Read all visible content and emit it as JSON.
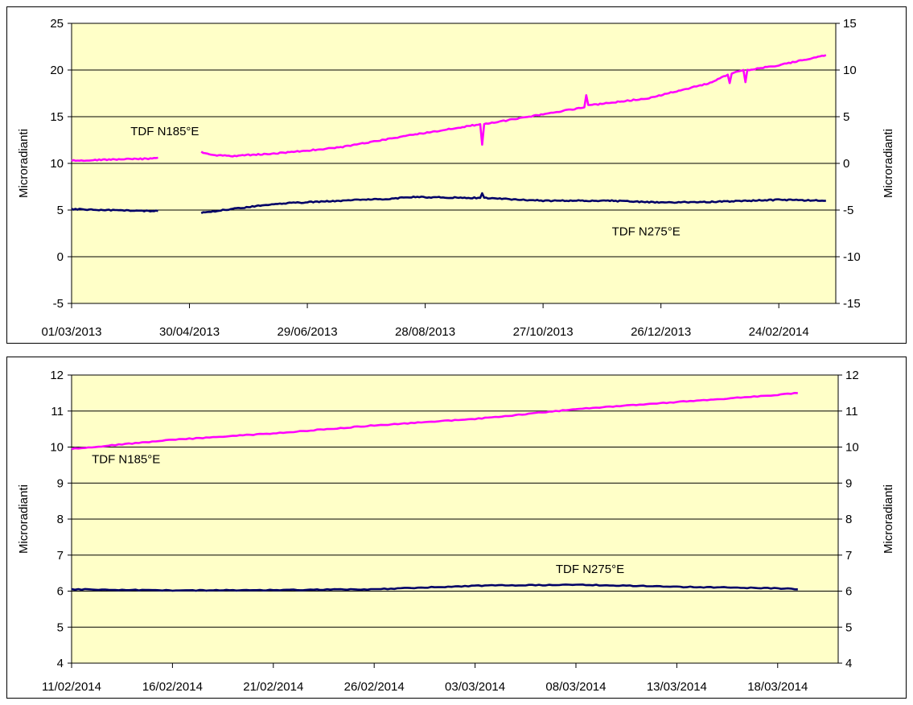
{
  "colors": {
    "plot_bg": "#ffffc8",
    "grid": "#000000",
    "series_tdf_n185e": "#ff00ff",
    "series_tdf_n275e": "#000066"
  },
  "chart_data": [
    {
      "type": "line",
      "x_type": "date",
      "ylabel": "Microradianti",
      "y2label": "Microradianti",
      "ylim": [
        -5,
        25
      ],
      "y2lim": [
        -15,
        15
      ],
      "yticks": [
        -5,
        0,
        5,
        10,
        15,
        20,
        25
      ],
      "y2ticks": [
        -15,
        -10,
        -5,
        0,
        5,
        10,
        15
      ],
      "xlim": [
        "2013-03-01",
        "2014-03-25"
      ],
      "xticks": [
        "01/03/2013",
        "30/04/2013",
        "29/06/2013",
        "28/08/2013",
        "27/10/2013",
        "26/12/2013",
        "24/02/2014"
      ],
      "xtick_dates": [
        "2013-03-01",
        "2013-04-30",
        "2013-06-29",
        "2013-08-28",
        "2013-10-27",
        "2013-12-26",
        "2014-02-24"
      ],
      "grid": true,
      "series": [
        {
          "name": "TDF N185°E",
          "axis": "left",
          "color": "#ff00ff",
          "segments": [
            [
              [
                "2013-03-01",
                10.3
              ],
              [
                "2013-03-20",
                10.4
              ],
              [
                "2013-04-10",
                10.5
              ],
              [
                "2013-04-14",
                10.6
              ]
            ],
            [
              [
                "2013-05-06",
                11.2
              ],
              [
                "2013-05-12",
                10.9
              ],
              [
                "2013-05-22",
                10.8
              ],
              [
                "2013-06-15",
                11.1
              ],
              [
                "2013-07-15",
                11.7
              ],
              [
                "2013-08-20",
                13.0
              ],
              [
                "2013-09-25",
                14.2
              ],
              [
                "2013-09-26",
                12.0
              ],
              [
                "2013-09-27",
                14.2
              ],
              [
                "2013-10-20",
                15.0
              ],
              [
                "2013-11-17",
                16.0
              ],
              [
                "2013-11-18",
                17.3
              ],
              [
                "2013-11-19",
                16.2
              ],
              [
                "2013-12-20",
                17.0
              ],
              [
                "2014-01-20",
                18.6
              ],
              [
                "2014-01-29",
                19.5
              ],
              [
                "2014-01-30",
                18.6
              ],
              [
                "2014-01-31",
                19.6
              ],
              [
                "2014-02-06",
                20.0
              ],
              [
                "2014-02-07",
                18.7
              ],
              [
                "2014-02-08",
                20.0
              ],
              [
                "2014-02-24",
                20.5
              ],
              [
                "2014-03-20",
                21.6
              ]
            ]
          ]
        },
        {
          "name": "TDF N275°E",
          "axis": "right",
          "color": "#000066",
          "segments": [
            [
              [
                "2013-03-01",
                -4.9
              ],
              [
                "2013-03-20",
                -5.0
              ],
              [
                "2013-04-10",
                -5.1
              ],
              [
                "2013-04-14",
                -5.1
              ]
            ],
            [
              [
                "2013-05-06",
                -5.3
              ],
              [
                "2013-05-25",
                -4.8
              ],
              [
                "2013-06-15",
                -4.3
              ],
              [
                "2013-07-15",
                -4.0
              ],
              [
                "2013-08-10",
                -3.8
              ],
              [
                "2013-08-20",
                -3.6
              ],
              [
                "2013-09-25",
                -3.7
              ],
              [
                "2013-09-26",
                -3.2
              ],
              [
                "2013-09-27",
                -3.7
              ],
              [
                "2013-10-27",
                -4.0
              ],
              [
                "2013-12-01",
                -4.0
              ],
              [
                "2013-12-26",
                -4.2
              ],
              [
                "2014-01-26",
                -4.1
              ],
              [
                "2014-02-24",
                -3.9
              ],
              [
                "2014-03-20",
                -4.0
              ]
            ]
          ]
        }
      ],
      "annotations": [
        {
          "text": "TDF N185°E",
          "x": "2013-03-31",
          "y": 13.0
        },
        {
          "text": "TDF N275°E",
          "x": "2013-12-01",
          "y": 2.3
        }
      ]
    },
    {
      "type": "line",
      "x_type": "date",
      "ylabel": "Microradianti",
      "y2label": "Microradianti",
      "ylim": [
        4,
        12
      ],
      "y2lim": [
        4,
        12
      ],
      "yticks": [
        4,
        5,
        6,
        7,
        8,
        9,
        10,
        11,
        12
      ],
      "y2ticks": [
        4,
        5,
        6,
        7,
        8,
        9,
        10,
        11,
        12
      ],
      "xlim": [
        "2014-02-11",
        "2014-03-21"
      ],
      "xticks": [
        "11/02/2014",
        "16/02/2014",
        "21/02/2014",
        "26/02/2014",
        "03/03/2014",
        "08/03/2014",
        "13/03/2014",
        "18/03/2014"
      ],
      "xtick_dates": [
        "2014-02-11",
        "2014-02-16",
        "2014-02-21",
        "2014-02-26",
        "2014-03-03",
        "2014-03-08",
        "2014-03-13",
        "2014-03-18"
      ],
      "grid": true,
      "series": [
        {
          "name": "TDF N185°E",
          "axis": "left",
          "color": "#ff00ff",
          "segments": [
            [
              [
                "2014-02-11",
                9.95
              ],
              [
                "2014-02-16",
                10.2
              ],
              [
                "2014-02-21",
                10.38
              ],
              [
                "2014-02-26",
                10.6
              ],
              [
                "2014-03-03",
                10.78
              ],
              [
                "2014-03-08",
                11.05
              ],
              [
                "2014-03-13",
                11.25
              ],
              [
                "2014-03-18",
                11.45
              ],
              [
                "2014-03-19",
                11.5
              ]
            ]
          ]
        },
        {
          "name": "TDF N275°E",
          "axis": "left",
          "color": "#000066",
          "segments": [
            [
              [
                "2014-02-11",
                6.05
              ],
              [
                "2014-02-16",
                6.02
              ],
              [
                "2014-02-21",
                6.03
              ],
              [
                "2014-02-26",
                6.05
              ],
              [
                "2014-03-03",
                6.15
              ],
              [
                "2014-03-08",
                6.18
              ],
              [
                "2014-03-13",
                6.12
              ],
              [
                "2014-03-18",
                6.08
              ],
              [
                "2014-03-19",
                6.05
              ]
            ]
          ]
        }
      ],
      "annotations": [
        {
          "text": "TDF N185°E",
          "x": "2014-02-12",
          "y": 9.55
        },
        {
          "text": "TDF N275°E",
          "x": "2014-03-07",
          "y": 6.5
        }
      ]
    }
  ]
}
